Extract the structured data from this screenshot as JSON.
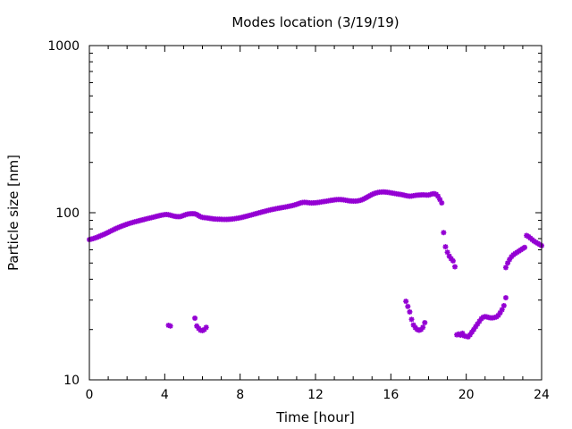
{
  "chart_data": {
    "type": "scatter",
    "title": "Modes location (3/19/19)",
    "xlabel": "Time [hour]",
    "ylabel": "Particle size [nm]",
    "xlim": [
      0,
      24
    ],
    "ylim": [
      10,
      1000
    ],
    "yscale": "log",
    "x_ticks": [
      0,
      4,
      8,
      12,
      16,
      20,
      24
    ],
    "x_tick_labels": [
      "0",
      "4",
      "8",
      "12",
      "16",
      "20",
      "24"
    ],
    "y_ticks": [
      10,
      100,
      1000
    ],
    "y_tick_labels": [
      "10",
      "100",
      "1000"
    ],
    "grid": false,
    "legend": "none",
    "marker_color": "#9400d3",
    "series": [
      {
        "values": [
          [
            0.0,
            69
          ],
          [
            0.1,
            69.5
          ],
          [
            0.2,
            70
          ],
          [
            0.3,
            70.6
          ],
          [
            0.4,
            71.2
          ],
          [
            0.5,
            72
          ],
          [
            0.6,
            72.8
          ],
          [
            0.7,
            73.6
          ],
          [
            0.8,
            74.4
          ],
          [
            0.9,
            75.3
          ],
          [
            1.0,
            76.3
          ],
          [
            1.1,
            77.3
          ],
          [
            1.2,
            78.3
          ],
          [
            1.3,
            79.3
          ],
          [
            1.4,
            80.3
          ],
          [
            1.5,
            81.2
          ],
          [
            1.6,
            82.1
          ],
          [
            1.7,
            83
          ],
          [
            1.8,
            83.8
          ],
          [
            1.9,
            84.6
          ],
          [
            2.0,
            85.4
          ],
          [
            2.1,
            86.1
          ],
          [
            2.2,
            86.8
          ],
          [
            2.3,
            87.5
          ],
          [
            2.4,
            88.1
          ],
          [
            2.5,
            88.7
          ],
          [
            2.6,
            89.3
          ],
          [
            2.7,
            89.9
          ],
          [
            2.8,
            90.5
          ],
          [
            2.9,
            91.1
          ],
          [
            3.0,
            91.7
          ],
          [
            3.1,
            92.3
          ],
          [
            3.2,
            92.9
          ],
          [
            3.3,
            93.5
          ],
          [
            3.4,
            94.1
          ],
          [
            3.5,
            94.7
          ],
          [
            3.6,
            95.3
          ],
          [
            3.7,
            95.9
          ],
          [
            3.8,
            96.5
          ],
          [
            3.9,
            97
          ],
          [
            4.0,
            97.4
          ],
          [
            4.1,
            97.5
          ],
          [
            4.2,
            97.2
          ],
          [
            4.3,
            96.6
          ],
          [
            4.4,
            95.9
          ],
          [
            4.5,
            95.3
          ],
          [
            4.6,
            94.9
          ],
          [
            4.7,
            94.7
          ],
          [
            4.8,
            94.8
          ],
          [
            4.9,
            95.3
          ],
          [
            5.0,
            96.3
          ],
          [
            5.1,
            97.3
          ],
          [
            5.2,
            98
          ],
          [
            5.3,
            98.4
          ],
          [
            5.4,
            98.6
          ],
          [
            5.5,
            98.7
          ],
          [
            5.6,
            98.5
          ],
          [
            5.7,
            97.6
          ],
          [
            5.8,
            96
          ],
          [
            5.9,
            94.6
          ],
          [
            6.0,
            93.7
          ],
          [
            6.1,
            93.4
          ],
          [
            6.2,
            93.2
          ],
          [
            6.3,
            92.9
          ],
          [
            6.4,
            92.5
          ],
          [
            6.5,
            92.1
          ],
          [
            6.6,
            91.8
          ],
          [
            6.7,
            91.6
          ],
          [
            6.8,
            91.5
          ],
          [
            6.9,
            91.4
          ],
          [
            7.0,
            91.3
          ],
          [
            7.1,
            91.2
          ],
          [
            7.2,
            91.2
          ],
          [
            7.3,
            91.2
          ],
          [
            7.4,
            91.3
          ],
          [
            7.5,
            91.5
          ],
          [
            7.6,
            91.7
          ],
          [
            7.7,
            92
          ],
          [
            7.8,
            92.4
          ],
          [
            7.9,
            92.8
          ],
          [
            8.0,
            93.3
          ],
          [
            8.1,
            93.8
          ],
          [
            8.2,
            94.4
          ],
          [
            8.3,
            95
          ],
          [
            8.4,
            95.6
          ],
          [
            8.5,
            96.3
          ],
          [
            8.6,
            97
          ],
          [
            8.7,
            97.7
          ],
          [
            8.8,
            98.4
          ],
          [
            8.9,
            99.1
          ],
          [
            9.0,
            99.8
          ],
          [
            9.1,
            100.5
          ],
          [
            9.2,
            101.2
          ],
          [
            9.3,
            101.9
          ],
          [
            9.4,
            102.6
          ],
          [
            9.5,
            103.3
          ],
          [
            9.6,
            103.9
          ],
          [
            9.7,
            104.5
          ],
          [
            9.8,
            105.1
          ],
          [
            9.9,
            105.7
          ],
          [
            10.0,
            106.2
          ],
          [
            10.1,
            106.7
          ],
          [
            10.2,
            107.2
          ],
          [
            10.3,
            107.7
          ],
          [
            10.4,
            108.2
          ],
          [
            10.5,
            108.7
          ],
          [
            10.6,
            109.3
          ],
          [
            10.7,
            109.9
          ],
          [
            10.8,
            110.6
          ],
          [
            10.9,
            111.4
          ],
          [
            11.0,
            112.3
          ],
          [
            11.1,
            113.3
          ],
          [
            11.2,
            114.3
          ],
          [
            11.3,
            115.1
          ],
          [
            11.4,
            115.4
          ],
          [
            11.5,
            115.2
          ],
          [
            11.6,
            114.8
          ],
          [
            11.7,
            114.5
          ],
          [
            11.8,
            114.4
          ],
          [
            11.9,
            114.5
          ],
          [
            12.0,
            114.7
          ],
          [
            12.1,
            115
          ],
          [
            12.2,
            115.4
          ],
          [
            12.3,
            115.9
          ],
          [
            12.4,
            116.4
          ],
          [
            12.5,
            116.9
          ],
          [
            12.6,
            117.4
          ],
          [
            12.7,
            117.9
          ],
          [
            12.8,
            118.4
          ],
          [
            12.9,
            118.9
          ],
          [
            13.0,
            119.3
          ],
          [
            13.1,
            119.7
          ],
          [
            13.2,
            119.9
          ],
          [
            13.3,
            119.9
          ],
          [
            13.4,
            119.7
          ],
          [
            13.5,
            119.3
          ],
          [
            13.6,
            118.8
          ],
          [
            13.7,
            118.3
          ],
          [
            13.8,
            117.8
          ],
          [
            13.9,
            117.5
          ],
          [
            14.0,
            117.3
          ],
          [
            14.1,
            117.3
          ],
          [
            14.2,
            117.5
          ],
          [
            14.3,
            118
          ],
          [
            14.4,
            118.8
          ],
          [
            14.5,
            120
          ],
          [
            14.6,
            121.5
          ],
          [
            14.7,
            123.2
          ],
          [
            14.8,
            125
          ],
          [
            14.9,
            126.8
          ],
          [
            15.0,
            128.5
          ],
          [
            15.1,
            130
          ],
          [
            15.2,
            131.2
          ],
          [
            15.3,
            132.1
          ],
          [
            15.4,
            132.7
          ],
          [
            15.5,
            133
          ],
          [
            15.6,
            133.1
          ],
          [
            15.7,
            132.9
          ],
          [
            15.8,
            132.6
          ],
          [
            15.9,
            132.1
          ],
          [
            16.0,
            131.5
          ],
          [
            16.1,
            130.9
          ],
          [
            16.2,
            130.3
          ],
          [
            16.3,
            129.7
          ],
          [
            16.4,
            129.2
          ],
          [
            16.5,
            128.7
          ],
          [
            16.6,
            128.1
          ],
          [
            16.7,
            127.4
          ],
          [
            16.8,
            126.6
          ],
          [
            16.9,
            125.9
          ],
          [
            17.0,
            125.6
          ],
          [
            17.1,
            125.8
          ],
          [
            17.2,
            126.3
          ],
          [
            17.3,
            126.9
          ],
          [
            17.4,
            127.3
          ],
          [
            17.5,
            127.6
          ],
          [
            17.6,
            127.8
          ],
          [
            17.7,
            127.9
          ],
          [
            17.8,
            127.8
          ],
          [
            17.9,
            127.5
          ],
          [
            18.0,
            127.6
          ],
          [
            18.1,
            128.5
          ],
          [
            18.2,
            129.6
          ],
          [
            18.3,
            130
          ],
          [
            18.4,
            128.8
          ],
          [
            18.5,
            125.5
          ],
          [
            18.6,
            120
          ],
          [
            18.7,
            114.5
          ],
          [
            18.8,
            76
          ],
          [
            18.9,
            62.5
          ],
          [
            19.0,
            58
          ],
          [
            19.1,
            55
          ],
          [
            19.2,
            53
          ],
          [
            19.3,
            51.5
          ],
          [
            19.4,
            47.5
          ],
          [
            22.1,
            47
          ],
          [
            22.2,
            50
          ],
          [
            22.3,
            52.5
          ],
          [
            22.4,
            54.5
          ],
          [
            22.5,
            56
          ],
          [
            22.6,
            57
          ],
          [
            22.7,
            58
          ],
          [
            22.8,
            59
          ],
          [
            22.9,
            60
          ],
          [
            23.0,
            61
          ],
          [
            23.1,
            62
          ],
          [
            23.2,
            73
          ],
          [
            23.3,
            72
          ],
          [
            23.4,
            70.5
          ],
          [
            23.5,
            69
          ],
          [
            23.6,
            67.5
          ],
          [
            23.7,
            66.5
          ],
          [
            23.8,
            65.5
          ],
          [
            23.9,
            64.5
          ],
          [
            24.0,
            63.5
          ]
        ]
      },
      {
        "values": [
          [
            4.2,
            21.2
          ],
          [
            4.3,
            21
          ],
          [
            5.6,
            23.4
          ],
          [
            5.7,
            21
          ],
          [
            5.8,
            20.3
          ],
          [
            5.9,
            19.8
          ],
          [
            6.0,
            19.7
          ],
          [
            6.1,
            20
          ],
          [
            6.2,
            20.6
          ],
          [
            16.8,
            29.5
          ],
          [
            16.9,
            27.5
          ],
          [
            17.0,
            25.5
          ],
          [
            17.1,
            23
          ],
          [
            17.2,
            21.3
          ],
          [
            17.3,
            20.5
          ],
          [
            17.4,
            20
          ],
          [
            17.5,
            19.8
          ],
          [
            17.6,
            20
          ],
          [
            17.7,
            20.6
          ],
          [
            17.8,
            22
          ],
          [
            19.5,
            18.6
          ],
          [
            19.6,
            18.8
          ],
          [
            19.7,
            18.5
          ],
          [
            19.8,
            19
          ],
          [
            19.9,
            18.3
          ],
          [
            20.0,
            18.2
          ],
          [
            20.1,
            18.1
          ],
          [
            20.2,
            18.6
          ],
          [
            20.3,
            19.3
          ],
          [
            20.4,
            20
          ],
          [
            20.5,
            20.8
          ],
          [
            20.6,
            21.6
          ],
          [
            20.7,
            22.4
          ],
          [
            20.8,
            23.2
          ],
          [
            20.9,
            23.7
          ],
          [
            21.0,
            23.9
          ],
          [
            21.1,
            23.8
          ],
          [
            21.2,
            23.6
          ],
          [
            21.3,
            23.5
          ],
          [
            21.4,
            23.5
          ],
          [
            21.5,
            23.6
          ],
          [
            21.6,
            23.8
          ],
          [
            21.7,
            24.3
          ],
          [
            21.8,
            25.2
          ],
          [
            21.9,
            26.3
          ],
          [
            22.0,
            27.8
          ],
          [
            22.1,
            31
          ]
        ]
      }
    ]
  }
}
